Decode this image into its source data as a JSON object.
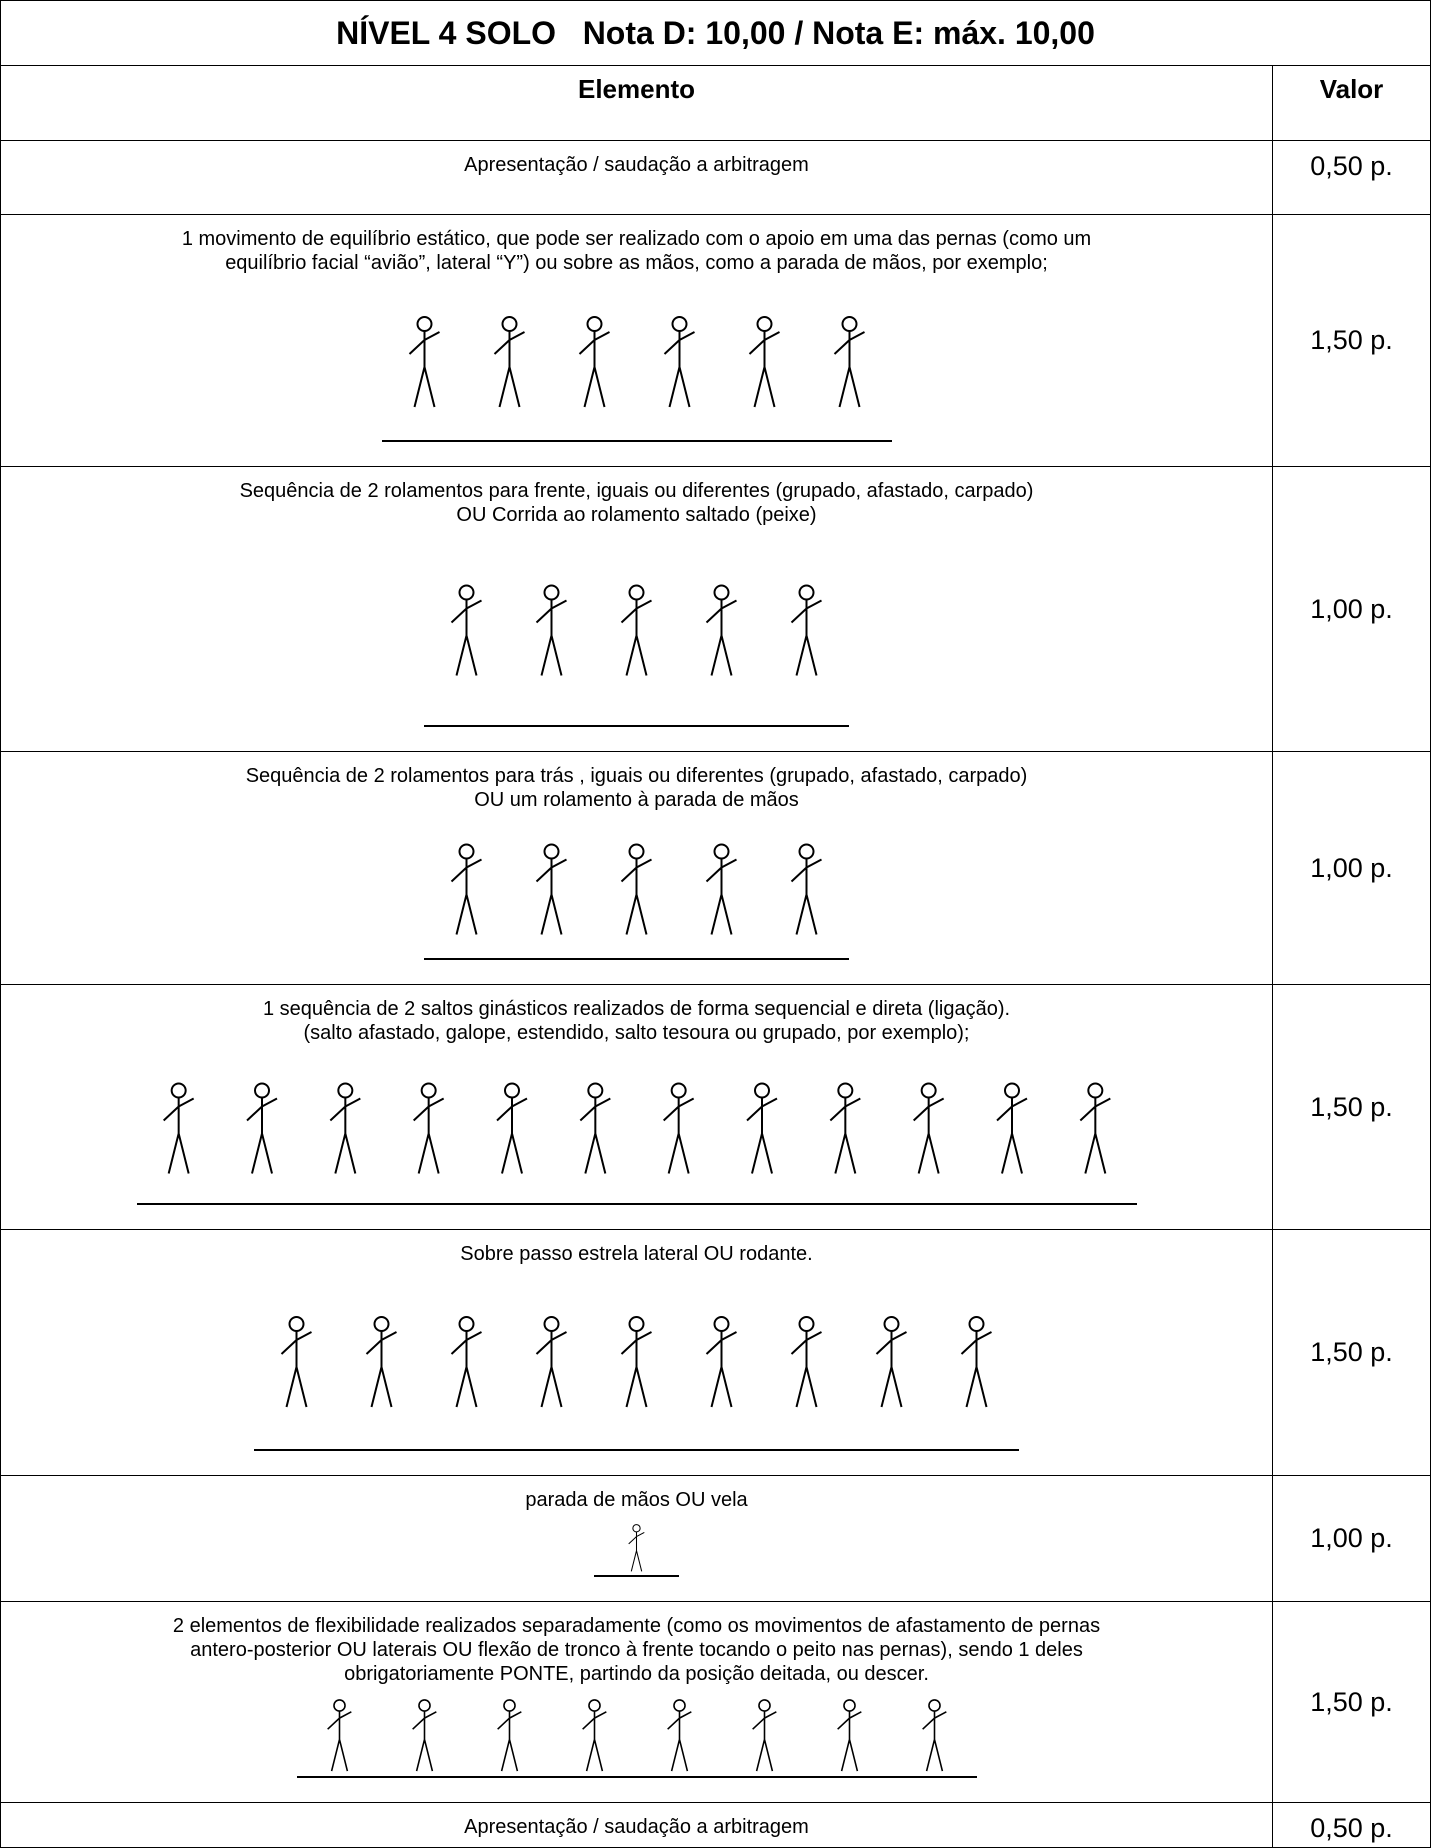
{
  "header": {
    "title": "NÍVEL 4 SOLO   Nota D: 10,00 / Nota E: máx. 10,00"
  },
  "table": {
    "columns": [
      "Elemento",
      "Valor"
    ],
    "rows": [
      {
        "lines": [
          "Apresentação / saudação a arbitragem"
        ],
        "value": "0,50 p."
      },
      {
        "lines": [
          "1 movimento de equilíbrio estático, que pode ser realizado com o apoio em uma das pernas (como um",
          "equilíbrio facial “avião”, lateral “Y”) ou sobre as mãos, como a parada de mãos, por exemplo;"
        ],
        "value": "1,50 p."
      },
      {
        "lines": [
          "Sequência de 2 rolamentos para frente, iguais ou diferentes (grupado, afastado, carpado)",
          "OU Corrida ao rolamento saltado (peixe)"
        ],
        "value": "1,00 p."
      },
      {
        "lines": [
          "Sequência de 2 rolamentos para trás , iguais ou diferentes (grupado, afastado, carpado)",
          "OU um rolamento à parada de mãos"
        ],
        "value": "1,00 p."
      },
      {
        "lines": [
          "1 sequência de 2 saltos ginásticos realizados de forma sequencial e direta (ligação).",
          "(salto afastado, galope, estendido, salto tesoura ou grupado, por exemplo);"
        ],
        "value": "1,50 p."
      },
      {
        "lines": [
          "Sobre passo estrela lateral OU rodante."
        ],
        "value": "1,50 p."
      },
      {
        "lines": [
          "parada de mãos OU vela"
        ],
        "value": "1,00 p."
      },
      {
        "lines": [
          "2 elementos de flexibilidade realizados separadamente (como os movimentos de afastamento de pernas",
          "antero-posterior OU laterais OU flexão de tronco à frente tocando o peito nas pernas), sendo 1 deles",
          "obrigatoriamente PONTE, partindo da posição deitada, ou descer."
        ],
        "value": "1,50 p."
      },
      {
        "lines": [
          "Apresentação / saudação a arbitragem"
        ],
        "value": "0,50 p."
      }
    ]
  }
}
